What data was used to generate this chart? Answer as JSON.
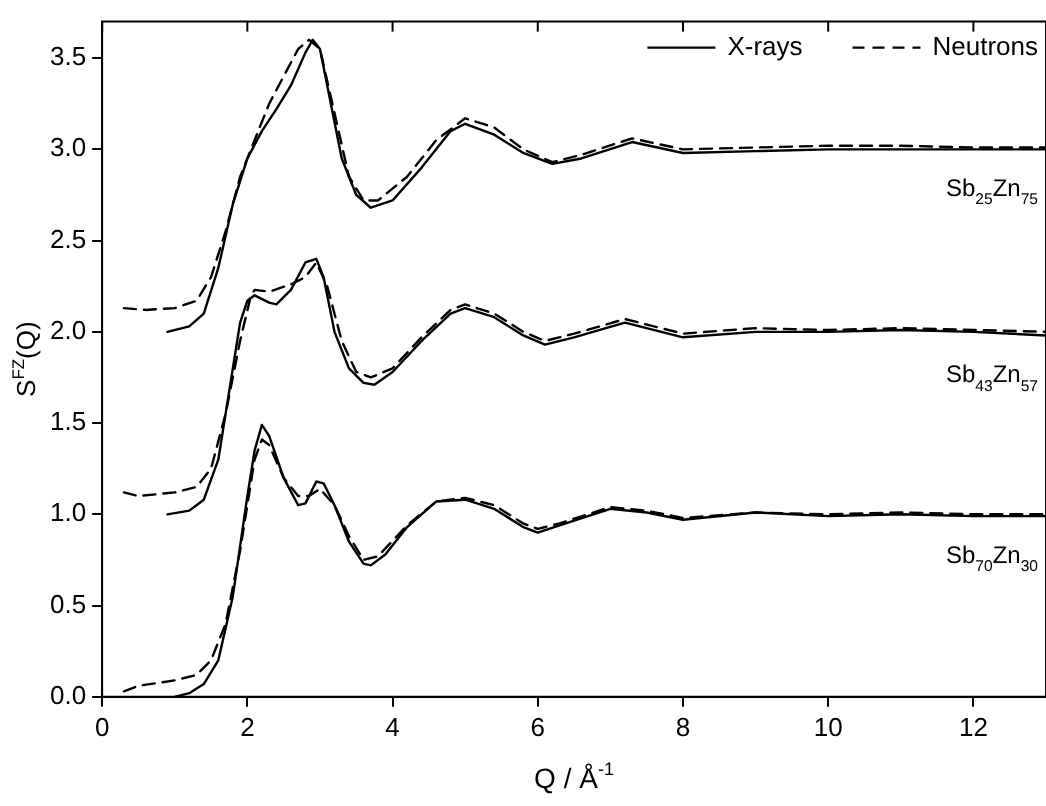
{
  "chart_data": {
    "type": "line",
    "xlabel": "Q / Å$^{-1}$",
    "ylabel": "S$^{FZ}$(Q)",
    "xlim": [
      0,
      13
    ],
    "xticks": [
      0,
      2,
      4,
      6,
      8,
      10,
      12
    ],
    "ylim": [
      0,
      3.7
    ],
    "yticks": [
      {
        "value": 0,
        "label": "0.0"
      },
      0.5,
      {
        "value": 1,
        "label": "1.0"
      },
      1.5,
      {
        "value": 2,
        "label": "2.0"
      },
      2.5,
      {
        "value": 3,
        "label": "3.0"
      },
      3.5
    ],
    "grid": false,
    "legend": "top right",
    "marker": "none",
    "series": [
      {
        "name": "X-rays",
        "color": "#000000",
        "line_style": "solid",
        "x": [
          1.0,
          1.2,
          1.4,
          1.6,
          1.8,
          2.0,
          2.1,
          2.2,
          2.3,
          2.5,
          2.7,
          2.8,
          2.95,
          3.05,
          3.2,
          3.4,
          3.6,
          3.7,
          3.9,
          4.2,
          4.6,
          5.0,
          5.4,
          5.8,
          6.0,
          6.3,
          7.0,
          7.5,
          8.0,
          9.0,
          10,
          11,
          12,
          13
        ],
        "values": [
          0.0,
          0.02,
          0.07,
          0.2,
          0.55,
          1.1,
          1.35,
          1.49,
          1.43,
          1.2,
          1.05,
          1.06,
          1.18,
          1.17,
          1.05,
          0.85,
          0.73,
          0.72,
          0.78,
          0.93,
          1.07,
          1.08,
          1.03,
          0.93,
          0.9,
          0.94,
          1.03,
          1.01,
          0.97,
          1.01,
          0.99,
          1.0,
          0.99,
          0.99
        ]
      },
      {
        "name": "Neutrons",
        "color": "#000000",
        "line_style": "dashed",
        "x": [
          0.3,
          0.5,
          1.0,
          1.3,
          1.5,
          1.7,
          1.9,
          2.1,
          2.2,
          2.3,
          2.5,
          2.7,
          2.85,
          3.0,
          3.2,
          3.4,
          3.6,
          3.8,
          4.2,
          4.6,
          5.0,
          5.4,
          5.8,
          6.0,
          6.3,
          7.0,
          7.5,
          8.0,
          9.0,
          10,
          11,
          12,
          13
        ],
        "values": [
          0.03,
          0.06,
          0.09,
          0.12,
          0.2,
          0.4,
          0.8,
          1.3,
          1.41,
          1.38,
          1.2,
          1.1,
          1.1,
          1.14,
          1.05,
          0.88,
          0.75,
          0.77,
          0.94,
          1.07,
          1.09,
          1.05,
          0.95,
          0.92,
          0.95,
          1.04,
          1.02,
          0.98,
          1.01,
          1.0,
          1.01,
          1.0,
          1.0
        ]
      },
      {
        "color": "#000000",
        "line_style": "solid",
        "x": [
          0.9,
          1.2,
          1.4,
          1.6,
          1.7,
          1.8,
          1.9,
          2.0,
          2.1,
          2.3,
          2.4,
          2.6,
          2.8,
          2.95,
          3.05,
          3.2,
          3.4,
          3.6,
          3.75,
          4.0,
          4.4,
          4.8,
          5.0,
          5.4,
          5.8,
          6.1,
          6.5,
          7.2,
          8.0,
          9.0,
          10,
          11,
          12,
          13
        ],
        "values": [
          1.0,
          1.02,
          1.08,
          1.3,
          1.55,
          1.8,
          2.05,
          2.17,
          2.2,
          2.16,
          2.15,
          2.23,
          2.38,
          2.4,
          2.3,
          2.0,
          1.8,
          1.72,
          1.71,
          1.78,
          1.95,
          2.1,
          2.13,
          2.08,
          1.98,
          1.93,
          1.97,
          2.05,
          1.97,
          2.0,
          2.0,
          2.01,
          2.0,
          1.98
        ]
      },
      {
        "color": "#000000",
        "line_style": "dashed",
        "x": [
          0.3,
          0.5,
          1.0,
          1.3,
          1.5,
          1.7,
          1.9,
          2.05,
          2.1,
          2.3,
          2.6,
          2.8,
          2.95,
          3.1,
          3.3,
          3.5,
          3.7,
          4.0,
          4.4,
          4.8,
          5.0,
          5.4,
          5.8,
          6.1,
          6.5,
          7.2,
          8.0,
          9.0,
          10,
          11,
          12,
          13
        ],
        "values": [
          1.12,
          1.1,
          1.12,
          1.15,
          1.25,
          1.55,
          1.95,
          2.2,
          2.23,
          2.22,
          2.26,
          2.3,
          2.38,
          2.25,
          1.95,
          1.78,
          1.75,
          1.8,
          1.97,
          2.12,
          2.15,
          2.1,
          2.0,
          1.95,
          1.99,
          2.07,
          1.99,
          2.02,
          2.01,
          2.02,
          2.01,
          2.0
        ]
      },
      {
        "color": "#000000",
        "line_style": "solid",
        "x": [
          0.9,
          1.2,
          1.4,
          1.6,
          1.8,
          2.0,
          2.2,
          2.4,
          2.6,
          2.8,
          2.9,
          3.0,
          3.1,
          3.3,
          3.5,
          3.7,
          4.0,
          4.4,
          4.8,
          5.0,
          5.4,
          5.8,
          6.2,
          6.6,
          7.3,
          8.0,
          9.0,
          10,
          11,
          12,
          13
        ],
        "values": [
          2.0,
          2.03,
          2.1,
          2.35,
          2.7,
          2.95,
          3.1,
          3.22,
          3.35,
          3.53,
          3.6,
          3.55,
          3.35,
          2.95,
          2.75,
          2.68,
          2.72,
          2.9,
          3.1,
          3.14,
          3.08,
          2.98,
          2.92,
          2.95,
          3.04,
          2.98,
          2.99,
          3.0,
          3.0,
          3.0,
          3.0
        ]
      },
      {
        "color": "#000000",
        "line_style": "dashed",
        "x": [
          0.3,
          0.6,
          1.0,
          1.3,
          1.5,
          1.7,
          1.9,
          2.1,
          2.3,
          2.5,
          2.7,
          2.85,
          3.0,
          3.2,
          3.4,
          3.6,
          3.8,
          4.2,
          4.6,
          5.0,
          5.4,
          5.8,
          6.2,
          6.6,
          7.3,
          8.0,
          9.0,
          10,
          11,
          12,
          13
        ],
        "values": [
          2.13,
          2.12,
          2.13,
          2.17,
          2.3,
          2.55,
          2.85,
          3.05,
          3.25,
          3.4,
          3.55,
          3.6,
          3.55,
          3.2,
          2.85,
          2.72,
          2.72,
          2.85,
          3.05,
          3.17,
          3.12,
          3.0,
          2.93,
          2.97,
          3.06,
          3.0,
          3.01,
          3.02,
          3.02,
          3.01,
          3.01
        ]
      }
    ],
    "annotations": [
      "Sb$_{25}$Zn$_{75}$",
      "Sb$_{43}$Zn$_{57}$",
      "Sb$_{70}$Zn$_{30}$"
    ]
  }
}
